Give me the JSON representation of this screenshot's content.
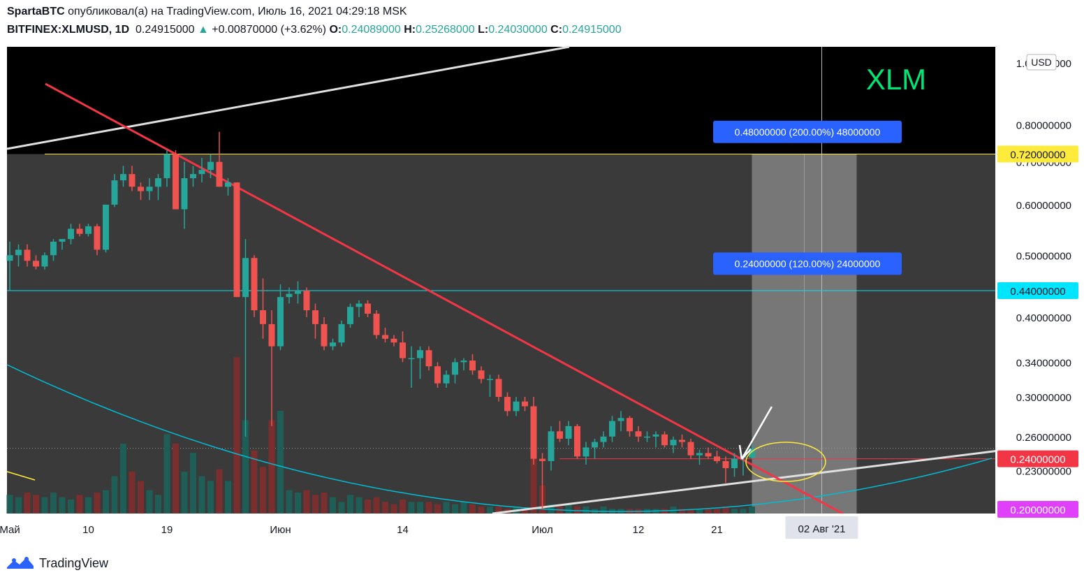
{
  "header": {
    "author": "SpartaBTC",
    "published_text": "опубликовал(а) на TradingView.com, Июль 16, 2021 04:29:18 MSK",
    "symbol": "BITFINEX:XLMUSD, 1D",
    "last": "0.24915000",
    "change": "+0.00870000 (+3.62%)",
    "o_label": "O:",
    "o_value": "0.24089000",
    "h_label": "H:",
    "h_value": "0.25268000",
    "l_label": "L:",
    "l_value": "0.24030000",
    "c_label": "C:",
    "c_value": "0.24915000"
  },
  "footer": {
    "brand": "TradingView"
  },
  "colors": {
    "up": "#26a69a",
    "down": "#ef5350",
    "bg": "#000000",
    "trendline": "#f23645",
    "channel": "#d1d4dc",
    "curve": "#00bcd4",
    "yellow": "#ffeb3b",
    "xlm": "#00e676",
    "label_blue": "#2962ff"
  },
  "chart_data": {
    "type": "candlestick",
    "title": "XLM",
    "currency_label": "USD",
    "y_scale": "log",
    "x_tick_labels": [
      "Май",
      "10",
      "19",
      "Июн",
      "14",
      "Июл",
      "12",
      "21"
    ],
    "x_tick_days": [
      0,
      9,
      18,
      31,
      45,
      61,
      72,
      81
    ],
    "crosshair_date_label": "02 Авг '21",
    "crosshair_day": 93,
    "y_tick_labels": [
      "1.00000000",
      "0.80000000",
      "0.70000000",
      "0.60000000",
      "0.50000000",
      "0.40000000",
      "0.34000000",
      "0.30000000",
      "0.26000000",
      "0.23000000"
    ],
    "y_tick_values": [
      1.0,
      0.8,
      0.7,
      0.6,
      0.5,
      0.4,
      0.34,
      0.3,
      0.26,
      0.23
    ],
    "ylim": [
      0.197,
      1.06
    ],
    "price_labels": [
      {
        "text": "0.72000000",
        "value": 0.72,
        "color": "#ffeb3b"
      },
      {
        "text": "0.44000000",
        "value": 0.44,
        "color": "#00e5ff"
      },
      {
        "text": "0.24000000",
        "value": 0.24,
        "color": "#f23645"
      },
      {
        "text": "0.20000000",
        "value": 0.2,
        "color": "#e040fb"
      }
    ],
    "horizontal_levels": [
      {
        "value": 0.72,
        "color": "#ffeb3b"
      },
      {
        "value": 0.44,
        "color": "#00e5ff"
      },
      {
        "value": 0.24,
        "color": "#f23645"
      }
    ],
    "target_labels": [
      {
        "text": "0.48000000 (200.00%) 48000000",
        "value": 0.78
      },
      {
        "text": "0.24000000 (120.00%) 24000000",
        "value": 0.485
      }
    ],
    "candles": [
      [
        0.49,
        0.525,
        0.44,
        0.5
      ],
      [
        0.5,
        0.52,
        0.48,
        0.51
      ],
      [
        0.51,
        0.52,
        0.48,
        0.49
      ],
      [
        0.49,
        0.5,
        0.475,
        0.48
      ],
      [
        0.48,
        0.505,
        0.475,
        0.5
      ],
      [
        0.5,
        0.53,
        0.49,
        0.525
      ],
      [
        0.525,
        0.53,
        0.51,
        0.53
      ],
      [
        0.53,
        0.56,
        0.52,
        0.55
      ],
      [
        0.55,
        0.56,
        0.535,
        0.54
      ],
      [
        0.54,
        0.56,
        0.535,
        0.555
      ],
      [
        0.555,
        0.56,
        0.5,
        0.51
      ],
      [
        0.51,
        0.6,
        0.505,
        0.6
      ],
      [
        0.6,
        0.67,
        0.595,
        0.655
      ],
      [
        0.655,
        0.69,
        0.64,
        0.67
      ],
      [
        0.67,
        0.69,
        0.63,
        0.64
      ],
      [
        0.64,
        0.65,
        0.61,
        0.63
      ],
      [
        0.63,
        0.66,
        0.61,
        0.64
      ],
      [
        0.64,
        0.67,
        0.61,
        0.66
      ],
      [
        0.66,
        0.73,
        0.64,
        0.72
      ],
      [
        0.72,
        0.73,
        0.59,
        0.59
      ],
      [
        0.59,
        0.7,
        0.55,
        0.66
      ],
      [
        0.66,
        0.69,
        0.64,
        0.67
      ],
      [
        0.67,
        0.71,
        0.65,
        0.68
      ],
      [
        0.68,
        0.72,
        0.66,
        0.7
      ],
      [
        0.7,
        0.78,
        0.64,
        0.64
      ],
      [
        0.64,
        0.66,
        0.62,
        0.65
      ],
      [
        0.65,
        0.65,
        0.43,
        0.43
      ],
      [
        0.43,
        0.53,
        0.26,
        0.495
      ],
      [
        0.495,
        0.5,
        0.4,
        0.41
      ],
      [
        0.41,
        0.46,
        0.37,
        0.39
      ],
      [
        0.39,
        0.41,
        0.27,
        0.36
      ],
      [
        0.36,
        0.45,
        0.355,
        0.43
      ],
      [
        0.43,
        0.445,
        0.42,
        0.435
      ],
      [
        0.435,
        0.455,
        0.42,
        0.44
      ],
      [
        0.44,
        0.445,
        0.4,
        0.41
      ],
      [
        0.41,
        0.42,
        0.37,
        0.39
      ],
      [
        0.39,
        0.4,
        0.355,
        0.36
      ],
      [
        0.36,
        0.37,
        0.355,
        0.365
      ],
      [
        0.365,
        0.395,
        0.36,
        0.39
      ],
      [
        0.39,
        0.42,
        0.385,
        0.415
      ],
      [
        0.415,
        0.425,
        0.4,
        0.42
      ],
      [
        0.42,
        0.425,
        0.4,
        0.405
      ],
      [
        0.405,
        0.41,
        0.37,
        0.375
      ],
      [
        0.375,
        0.385,
        0.365,
        0.37
      ],
      [
        0.37,
        0.375,
        0.36,
        0.365
      ],
      [
        0.365,
        0.38,
        0.34,
        0.345
      ],
      [
        0.345,
        0.36,
        0.31,
        0.345
      ],
      [
        0.345,
        0.36,
        0.32,
        0.355
      ],
      [
        0.355,
        0.36,
        0.33,
        0.335
      ],
      [
        0.335,
        0.34,
        0.31,
        0.315
      ],
      [
        0.315,
        0.33,
        0.31,
        0.325
      ],
      [
        0.325,
        0.345,
        0.315,
        0.34
      ],
      [
        0.34,
        0.345,
        0.33,
        0.342
      ],
      [
        0.342,
        0.35,
        0.325,
        0.33
      ],
      [
        0.33,
        0.335,
        0.315,
        0.32
      ],
      [
        0.32,
        0.325,
        0.3,
        0.32
      ],
      [
        0.32,
        0.325,
        0.295,
        0.3
      ],
      [
        0.3,
        0.305,
        0.28,
        0.285
      ],
      [
        0.285,
        0.3,
        0.28,
        0.295
      ],
      [
        0.295,
        0.3,
        0.285,
        0.29
      ],
      [
        0.29,
        0.3,
        0.235,
        0.24
      ],
      [
        0.24,
        0.245,
        0.2,
        0.238
      ],
      [
        0.238,
        0.27,
        0.23,
        0.265
      ],
      [
        0.265,
        0.275,
        0.255,
        0.258
      ],
      [
        0.258,
        0.275,
        0.252,
        0.27
      ],
      [
        0.27,
        0.272,
        0.24,
        0.242
      ],
      [
        0.242,
        0.255,
        0.235,
        0.25
      ],
      [
        0.25,
        0.258,
        0.24,
        0.255
      ],
      [
        0.255,
        0.265,
        0.25,
        0.26
      ],
      [
        0.26,
        0.28,
        0.255,
        0.275
      ],
      [
        0.275,
        0.285,
        0.265,
        0.278
      ],
      [
        0.278,
        0.28,
        0.26,
        0.265
      ],
      [
        0.265,
        0.27,
        0.255,
        0.26
      ],
      [
        0.26,
        0.265,
        0.255,
        0.26
      ],
      [
        0.26,
        0.265,
        0.25,
        0.262
      ],
      [
        0.262,
        0.265,
        0.25,
        0.252
      ],
      [
        0.252,
        0.26,
        0.245,
        0.257
      ],
      [
        0.257,
        0.262,
        0.25,
        0.255
      ],
      [
        0.255,
        0.258,
        0.24,
        0.243
      ],
      [
        0.243,
        0.248,
        0.235,
        0.245
      ],
      [
        0.245,
        0.25,
        0.24,
        0.242
      ],
      [
        0.242,
        0.247,
        0.236,
        0.238
      ],
      [
        0.238,
        0.242,
        0.22,
        0.232
      ],
      [
        0.232,
        0.245,
        0.225,
        0.24
      ],
      [
        0.241,
        0.244,
        0.226,
        0.242
      ],
      [
        0.24089,
        0.25268,
        0.2403,
        0.24915
      ]
    ],
    "volume_scale": "relative",
    "volumes": [
      0.08,
      0.07,
      0.09,
      0.08,
      0.07,
      0.09,
      0.07,
      0.06,
      0.08,
      0.07,
      0.09,
      0.1,
      0.16,
      0.3,
      0.18,
      0.14,
      0.1,
      0.08,
      0.34,
      0.3,
      0.18,
      0.26,
      0.16,
      0.14,
      0.19,
      0.14,
      0.67,
      0.4,
      0.27,
      0.2,
      0.4,
      0.44,
      0.1,
      0.09,
      0.1,
      0.08,
      0.09,
      0.07,
      0.05,
      0.08,
      0.07,
      0.06,
      0.07,
      0.05,
      0.04,
      0.06,
      0.05,
      0.05,
      0.05,
      0.04,
      0.05,
      0.04,
      0.05,
      0.04,
      0.03,
      0.03,
      0.03,
      0.02,
      0.03,
      0.02,
      0.3,
      0.12,
      0.04,
      0.03,
      0.04,
      0.03,
      0.03,
      0.02,
      0.03,
      0.02,
      0.02,
      0.02,
      0.02,
      0.02,
      0.02,
      0.02,
      0.03,
      0.02,
      0.02,
      0.02,
      0.02,
      0.02,
      0.03,
      0.02,
      0.02,
      0.03
    ]
  }
}
